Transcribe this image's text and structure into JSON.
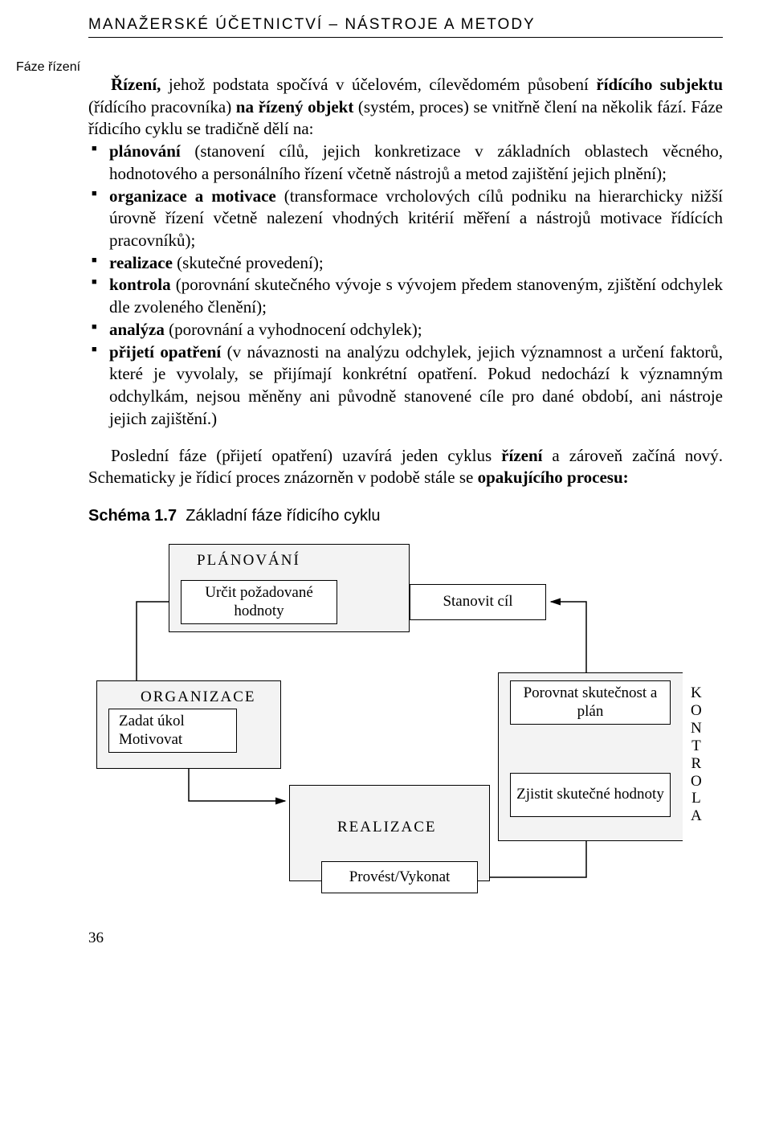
{
  "header": "MANAŽERSKÉ ÚČETNICTVÍ – NÁSTROJE A METODY",
  "marginNote": "Fáze řízení",
  "intro": "<b>Řízení,</b> jehož podstata spočívá v účelovém, cílevědomém působení <b>řídícího subjektu</b> (řídícího pracovníka) <b>na řízený objekt</b> (systém, proces) se vnitřně člení na několik fází. Fáze řídicího cyklu se tradičně dělí na:",
  "bullets": [
    "<b>plánování</b> (stanovení cílů, jejich konkretizace v základních oblastech věcného, hodnotového a personálního řízení včetně nástrojů a metod zajištění jejich plnění);",
    "<b>organizace a motivace</b> (transformace vrcholových cílů podniku na hierarchicky nižší úrovně řízení včetně nalezení vhodných kritérií měření a nástrojů motivace řídících pracovníků);",
    "<b>realizace</b> (skutečné provedení);",
    "<b>kontrola</b> (porovnání skutečného vývoje s vývojem předem stanoveným, zjištění odchylek dle zvoleného členění);",
    "<b>analýza</b> (porovnání a vyhodnocení odchylek);",
    "<b>přijetí opatření</b> (v návaznosti na analýzu odchylek, jejich významnost a určení faktorů, které je vyvolaly, se přijímají konkrétní opatření. Pokud nedochází k významným odchylkám, nejsou měněny ani původně stanovené cíle pro dané období, ani nástroje jejich zajištění.)"
  ],
  "closingPara": "Poslední fáze (přijetí opatření) uzavírá jeden cyklus <b>řízení</b> a zároveň začíná nový. Schematicky je řídicí proces znázorněn v podobě stále se <b>opakujícího procesu:</b>",
  "schemaLabel": "Schéma 1.7",
  "schemaTitle": "Základní fáze řídicího cyklu",
  "pageNumber": "36",
  "diagram": {
    "phases": {
      "plan": "PLÁNOVÁNÍ",
      "org": "ORGANIZACE",
      "real": "REALIZACE",
      "kontrola": "KONTROLA"
    },
    "boxes": {
      "urcit": "Určit požadované\nhodnoty",
      "stanovit": "Stanovit cíl",
      "zadat": "Zadat úkol\nMotivovat",
      "porovnat": "Porovnat\nskutečnost a plán",
      "zjistit": "Zjistit skutečné\nhodnoty",
      "provest": "Provést/Vykonat"
    }
  }
}
